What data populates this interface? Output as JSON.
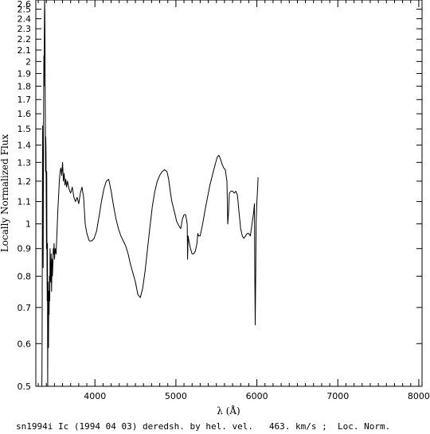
{
  "chart_data": {
    "type": "line",
    "title": "",
    "xlabel": "λ (Å)",
    "ylabel": "Locally Normalized Flux",
    "caption": "sn1994i Ic (1994 04 03) deredsh. by hel. vel.   463. km/s ;  Loc. Norm.",
    "xlim": [
      3270,
      8040
    ],
    "ylim": [
      0.5,
      2.6
    ],
    "yscale": "log",
    "grid": false,
    "x_ticks": [
      {
        "value": 4000,
        "label": "4000"
      },
      {
        "value": 5000,
        "label": "5000"
      },
      {
        "value": 6000,
        "label": "6000"
      },
      {
        "value": 7000,
        "label": "7000"
      },
      {
        "value": 8000,
        "label": "8000"
      }
    ],
    "x_minor_ticks": [
      3300,
      3400,
      3500,
      3600,
      3700,
      3800,
      3900,
      4100,
      4200,
      4300,
      4400,
      4500,
      4600,
      4700,
      4800,
      4900,
      5100,
      5200,
      5300,
      5400,
      5500,
      5600,
      5700,
      5800,
      5900,
      6100,
      6200,
      6300,
      6400,
      6500,
      6600,
      6700,
      6800,
      6900,
      7100,
      7200,
      7300,
      7400,
      7500,
      7600,
      7700,
      7800,
      7900
    ],
    "y_ticks": [
      {
        "value": 0.5,
        "label": "0.5"
      },
      {
        "value": 0.6,
        "label": "0.6"
      },
      {
        "value": 0.7,
        "label": "0.7"
      },
      {
        "value": 0.8,
        "label": "0.8"
      },
      {
        "value": 0.9,
        "label": "0.9"
      },
      {
        "value": 1.0,
        "label": "1"
      },
      {
        "value": 1.1,
        "label": "1.1"
      },
      {
        "value": 1.2,
        "label": "1.2"
      },
      {
        "value": 1.3,
        "label": "1.3"
      },
      {
        "value": 1.4,
        "label": "1.4"
      },
      {
        "value": 1.5,
        "label": "1.5"
      },
      {
        "value": 1.6,
        "label": "1.6"
      },
      {
        "value": 1.7,
        "label": "1.7"
      },
      {
        "value": 1.8,
        "label": "1.8"
      },
      {
        "value": 1.9,
        "label": "1.9"
      },
      {
        "value": 2.0,
        "label": "2"
      },
      {
        "value": 2.1,
        "label": "2.1"
      },
      {
        "value": 2.2,
        "label": "2.2"
      },
      {
        "value": 2.3,
        "label": "2.3"
      },
      {
        "value": 2.4,
        "label": "2.4"
      },
      {
        "value": 2.5,
        "label": "2.5"
      },
      {
        "value": 2.6,
        "label": "2.6"
      }
    ],
    "series": [
      {
        "color": "#000000",
        "points": [
          [
            3345,
            0.5
          ],
          [
            3348,
            0.62
          ],
          [
            3351,
            1.0
          ],
          [
            3354,
            1.52
          ],
          [
            3357,
            1.15
          ],
          [
            3360,
            0.83
          ],
          [
            3363,
            1.2
          ],
          [
            3366,
            1.6
          ],
          [
            3369,
            2.05
          ],
          [
            3372,
            1.8
          ],
          [
            3375,
            2.3
          ],
          [
            3378,
            2.6
          ],
          [
            3381,
            2.45
          ],
          [
            3384,
            2.0
          ],
          [
            3387,
            1.6
          ],
          [
            3390,
            1.25
          ],
          [
            3393,
            1.45
          ],
          [
            3396,
            1.35
          ],
          [
            3399,
            1.1
          ],
          [
            3402,
            0.9
          ],
          [
            3405,
            1.25
          ],
          [
            3408,
            0.85
          ],
          [
            3411,
            0.72
          ],
          [
            3414,
            0.92
          ],
          [
            3417,
            0.5
          ],
          [
            3420,
            0.78
          ],
          [
            3423,
            0.62
          ],
          [
            3426,
            0.59
          ],
          [
            3430,
            0.75
          ],
          [
            3434,
            0.68
          ],
          [
            3438,
            0.8
          ],
          [
            3442,
            0.72
          ],
          [
            3446,
            0.9
          ],
          [
            3450,
            0.82
          ],
          [
            3455,
            0.78
          ],
          [
            3460,
            0.88
          ],
          [
            3465,
            0.75
          ],
          [
            3470,
            0.86
          ],
          [
            3475,
            0.8
          ],
          [
            3480,
            0.84
          ],
          [
            3485,
            0.9
          ],
          [
            3490,
            0.88
          ],
          [
            3495,
            0.92
          ],
          [
            3500,
            0.86
          ],
          [
            3510,
            0.9
          ],
          [
            3520,
            0.88
          ],
          [
            3530,
            0.95
          ],
          [
            3540,
            1.05
          ],
          [
            3550,
            1.12
          ],
          [
            3560,
            1.2
          ],
          [
            3570,
            1.25
          ],
          [
            3580,
            1.27
          ],
          [
            3590,
            1.23
          ],
          [
            3600,
            1.3
          ],
          [
            3610,
            1.2
          ],
          [
            3620,
            1.24
          ],
          [
            3630,
            1.18
          ],
          [
            3640,
            1.21
          ],
          [
            3650,
            1.17
          ],
          [
            3660,
            1.2
          ],
          [
            3680,
            1.16
          ],
          [
            3700,
            1.14
          ],
          [
            3720,
            1.17
          ],
          [
            3740,
            1.12
          ],
          [
            3760,
            1.1
          ],
          [
            3780,
            1.12
          ],
          [
            3800,
            1.09
          ],
          [
            3820,
            1.14
          ],
          [
            3840,
            1.17
          ],
          [
            3860,
            1.12
          ],
          [
            3880,
            1.0
          ],
          [
            3900,
            0.96
          ],
          [
            3930,
            0.93
          ],
          [
            3960,
            0.93
          ],
          [
            3990,
            0.94
          ],
          [
            4020,
            0.97
          ],
          [
            4050,
            1.03
          ],
          [
            4080,
            1.1
          ],
          [
            4110,
            1.16
          ],
          [
            4140,
            1.2
          ],
          [
            4170,
            1.21
          ],
          [
            4200,
            1.15
          ],
          [
            4230,
            1.08
          ],
          [
            4260,
            1.02
          ],
          [
            4290,
            0.98
          ],
          [
            4320,
            0.95
          ],
          [
            4350,
            0.93
          ],
          [
            4380,
            0.91
          ],
          [
            4410,
            0.88
          ],
          [
            4440,
            0.84
          ],
          [
            4470,
            0.81
          ],
          [
            4500,
            0.78
          ],
          [
            4530,
            0.74
          ],
          [
            4560,
            0.73
          ],
          [
            4590,
            0.76
          ],
          [
            4620,
            0.82
          ],
          [
            4650,
            0.9
          ],
          [
            4680,
            0.99
          ],
          [
            4710,
            1.08
          ],
          [
            4740,
            1.15
          ],
          [
            4770,
            1.2
          ],
          [
            4800,
            1.23
          ],
          [
            4830,
            1.25
          ],
          [
            4860,
            1.26
          ],
          [
            4890,
            1.25
          ],
          [
            4910,
            1.21
          ],
          [
            4930,
            1.15
          ],
          [
            4950,
            1.1
          ],
          [
            4970,
            1.07
          ],
          [
            4990,
            1.04
          ],
          [
            5010,
            1.01
          ],
          [
            5040,
            0.99
          ],
          [
            5060,
            0.98
          ],
          [
            5080,
            1.02
          ],
          [
            5100,
            1.04
          ],
          [
            5120,
            1.04
          ],
          [
            5140,
            1.0
          ],
          [
            5145,
            0.86
          ],
          [
            5150,
            0.95
          ],
          [
            5160,
            0.93
          ],
          [
            5180,
            0.9
          ],
          [
            5200,
            0.88
          ],
          [
            5220,
            0.88
          ],
          [
            5240,
            0.89
          ],
          [
            5260,
            0.92
          ],
          [
            5270,
            0.96
          ],
          [
            5280,
            0.95
          ],
          [
            5300,
            0.95
          ],
          [
            5330,
            1.0
          ],
          [
            5360,
            1.06
          ],
          [
            5390,
            1.12
          ],
          [
            5420,
            1.18
          ],
          [
            5450,
            1.23
          ],
          [
            5480,
            1.28
          ],
          [
            5510,
            1.33
          ],
          [
            5530,
            1.34
          ],
          [
            5550,
            1.32
          ],
          [
            5570,
            1.29
          ],
          [
            5590,
            1.27
          ],
          [
            5610,
            1.26
          ],
          [
            5630,
            1.2
          ],
          [
            5640,
            1.0
          ],
          [
            5650,
            1.05
          ],
          [
            5660,
            1.14
          ],
          [
            5680,
            1.15
          ],
          [
            5700,
            1.15
          ],
          [
            5720,
            1.14
          ],
          [
            5740,
            1.15
          ],
          [
            5760,
            1.13
          ],
          [
            5780,
            1.05
          ],
          [
            5800,
            0.98
          ],
          [
            5820,
            0.95
          ],
          [
            5840,
            0.94
          ],
          [
            5860,
            0.95
          ],
          [
            5880,
            0.96
          ],
          [
            5900,
            0.96
          ],
          [
            5920,
            0.95
          ],
          [
            5940,
            1.0
          ],
          [
            5960,
            1.05
          ],
          [
            5970,
            1.09
          ],
          [
            5975,
            0.8
          ],
          [
            5980,
            0.65
          ],
          [
            5985,
            0.8
          ],
          [
            5990,
            1.0
          ],
          [
            6000,
            1.1
          ],
          [
            6010,
            1.17
          ],
          [
            6015,
            1.22
          ]
        ]
      }
    ]
  }
}
